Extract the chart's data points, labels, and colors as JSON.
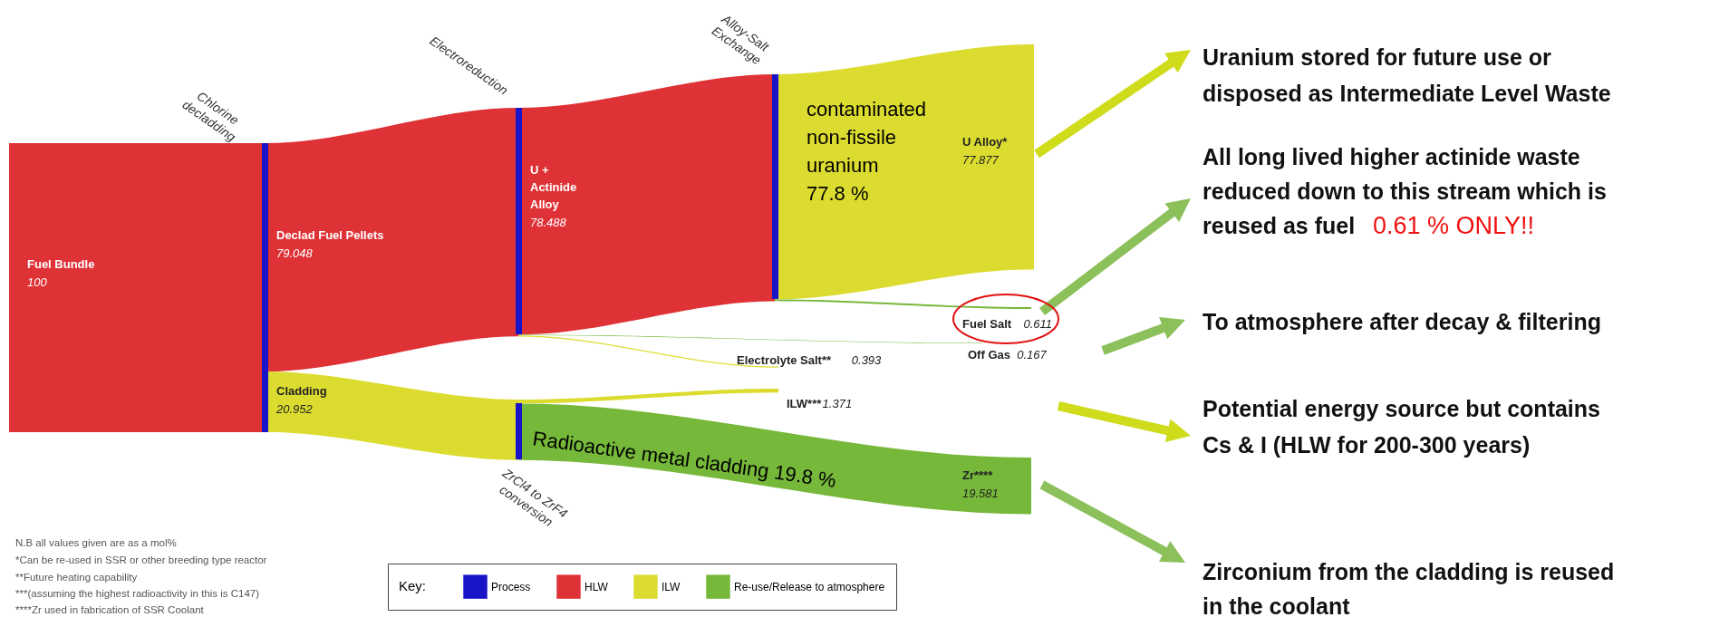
{
  "chart_data": {
    "type": "other",
    "categories": [
      "Fuel Bundle",
      "Declad Fuel Pellets",
      "Cladding",
      "U + Actinide Alloy",
      "U Alloy*",
      "Fuel Salt",
      "Off Gas",
      "Electrolyte Salt**",
      "ILW***",
      "Zr****"
    ],
    "series": [
      {
        "name": "Process",
        "color": "#1a14c8",
        "values": [
          null,
          null,
          null,
          null,
          null,
          null,
          null,
          null,
          null,
          null
        ]
      },
      {
        "name": "HLW",
        "color": "#df3236",
        "values": [
          100,
          79.048,
          null,
          78.488,
          null,
          null,
          null,
          null,
          null,
          null
        ]
      },
      {
        "name": "ILW",
        "color": "#dcdc30",
        "values": [
          null,
          null,
          20.952,
          null,
          77.877,
          null,
          null,
          0.393,
          1.371,
          null
        ]
      },
      {
        "name": "Re-use/Release to atmosphere",
        "color": "#76b83a",
        "values": [
          null,
          null,
          null,
          null,
          null,
          0.611,
          0.167,
          null,
          null,
          19.581
        ]
      }
    ],
    "data_labels": true,
    "legend_title": "Key:",
    "legend": "bottom",
    "annotations": [
      "Chlorine decladding",
      "Electroreduction",
      "Alloy-Salt Exchange",
      "ZrCl4 to ZrF4 conversion",
      "contaminated non-fissile uranium 77.8 %",
      "Radioactive metal cladding 19.8 %",
      "Uranium stored for future use or disposed as Intermediate Level Waste",
      "All long lived higher actinide waste reduced down to this stream which is reused as fuel",
      "0.61 % ONLY!!",
      "To atmosphere after decay & filtering",
      "Potential energy source but contains Cs & I (HLW for 200-300 years)",
      "Zirconium from the cladding is reused in the coolant",
      "N.B all values given are as a mol%",
      "*Can be re-used in SSR or other breeding type reactor",
      "**Future heating capability",
      "***(assuming the highest radioactivity in this is C147)",
      "****Zr used in fabrication of SSR Coolant"
    ]
  }
}
